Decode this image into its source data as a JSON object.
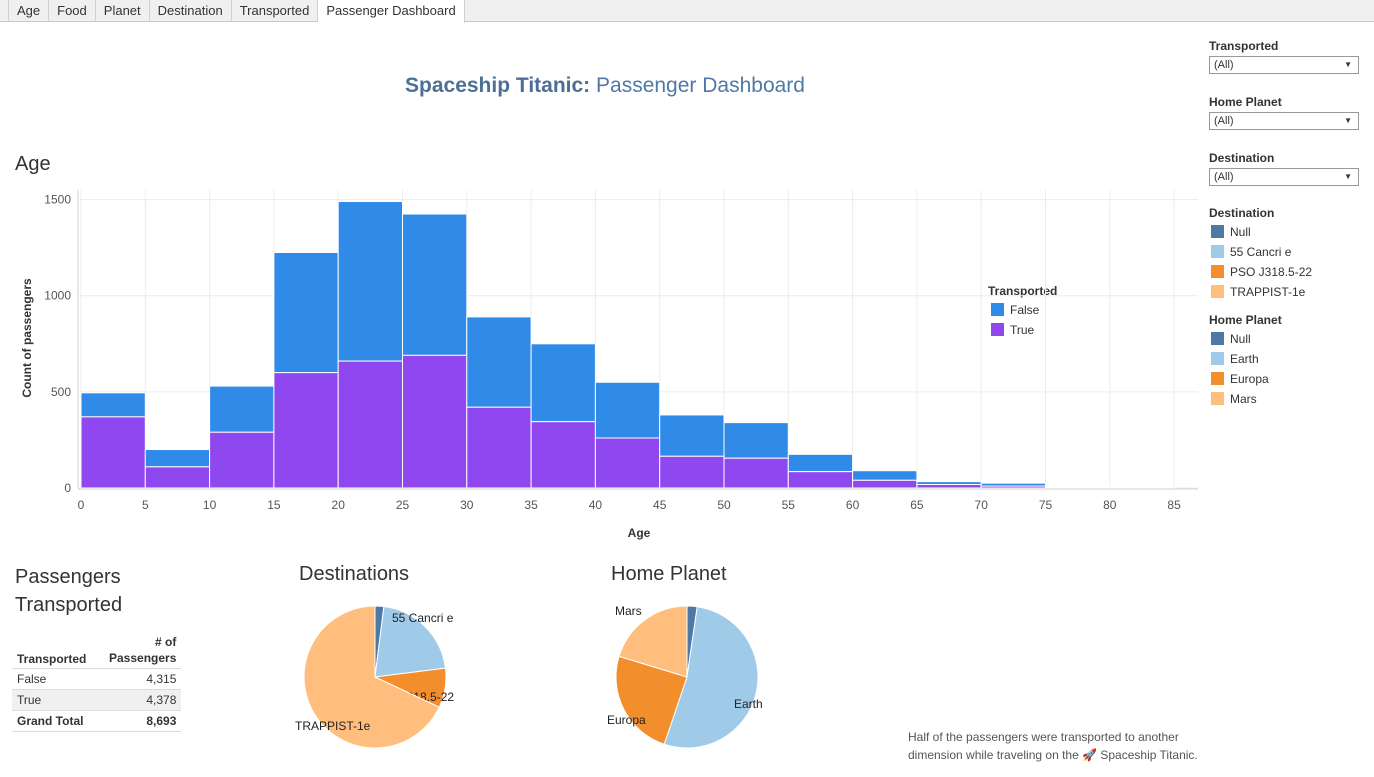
{
  "tabs": [
    "Age",
    "Food",
    "Planet",
    "Destination",
    "Transported",
    "Passenger Dashboard"
  ],
  "active_tab": "Passenger Dashboard",
  "title": {
    "bold": "Spaceship Titanic:",
    "rest": " Passenger Dashboard"
  },
  "filters": [
    {
      "label": "Transported",
      "value": "(All)"
    },
    {
      "label": "Home Planet",
      "value": "(All)"
    },
    {
      "label": "Destination",
      "value": "(All)"
    }
  ],
  "legends": {
    "destination": {
      "title": "Destination",
      "items": [
        {
          "label": "Null",
          "color": "#4e79a7"
        },
        {
          "label": "55 Cancri e",
          "color": "#a0cbe8"
        },
        {
          "label": "PSO J318.5-22",
          "color": "#f28e2b"
        },
        {
          "label": "TRAPPIST-1e",
          "color": "#ffbe7d"
        }
      ]
    },
    "home_planet": {
      "title": "Home Planet",
      "items": [
        {
          "label": "Null",
          "color": "#4e79a7"
        },
        {
          "label": "Earth",
          "color": "#a0cbe8"
        },
        {
          "label": "Europa",
          "color": "#f28e2b"
        },
        {
          "label": "Mars",
          "color": "#ffbe7d"
        }
      ]
    },
    "transported": {
      "title": "Transported",
      "items": [
        {
          "label": "False",
          "color": "#2f8ae8"
        },
        {
          "label": "True",
          "color": "#8f48ef"
        }
      ]
    }
  },
  "sections": {
    "age": "Age",
    "passengers": "Passengers Transported",
    "destinations": "Destinations",
    "home_planet": "Home Planet"
  },
  "table": {
    "headers": [
      "Transported",
      "# of Passengers"
    ],
    "rows": [
      {
        "label": "False",
        "value": "4,315"
      },
      {
        "label": "True",
        "value": "4,378"
      }
    ],
    "total": {
      "label": "Grand Total",
      "value": "8,693"
    }
  },
  "footnote": "Half of the passengers were transported to another dimension while traveling on the 🚀 Spaceship Titanic.",
  "chart_data": [
    {
      "type": "bar",
      "title": "Age",
      "xlabel": "Age",
      "ylabel": "Count of passengers",
      "bin_start": [
        0,
        5,
        10,
        15,
        20,
        25,
        30,
        35,
        40,
        45,
        50,
        55,
        60,
        65,
        70,
        75,
        80
      ],
      "bin_width": 5,
      "xticks": [
        0,
        5,
        10,
        15,
        20,
        25,
        30,
        35,
        40,
        45,
        50,
        55,
        60,
        65,
        70,
        75,
        80,
        85
      ],
      "yticks": [
        0,
        500,
        1000,
        1500
      ],
      "xlim": [
        0,
        87
      ],
      "ylim": [
        0,
        1550
      ],
      "stacked": true,
      "series": [
        {
          "name": "True",
          "values": [
            370,
            110,
            290,
            600,
            660,
            690,
            420,
            345,
            260,
            165,
            155,
            85,
            40,
            18,
            10,
            3,
            1
          ]
        },
        {
          "name": "False",
          "values": [
            125,
            90,
            240,
            625,
            830,
            735,
            470,
            405,
            290,
            215,
            185,
            90,
            50,
            15,
            15,
            4,
            1
          ]
        }
      ],
      "legend": "right"
    },
    {
      "type": "pie",
      "title": "Destinations",
      "slices": [
        {
          "label": "Null",
          "value": 2,
          "color": "#4e79a7",
          "show_label": false
        },
        {
          "label": "55 Cancri e",
          "value": 21,
          "color": "#a0cbe8",
          "show_label": true
        },
        {
          "label": "PSO J318.5-22",
          "value": 9,
          "color": "#f28e2b",
          "show_label": true
        },
        {
          "label": "TRAPPIST-1e",
          "value": 68,
          "color": "#ffbe7d",
          "show_label": true
        }
      ]
    },
    {
      "type": "pie",
      "title": "Home Planet",
      "slices": [
        {
          "label": "Null",
          "value": 2.3,
          "color": "#4e79a7",
          "show_label": false
        },
        {
          "label": "Earth",
          "value": 52.9,
          "color": "#a0cbe8",
          "show_label": true
        },
        {
          "label": "Europa",
          "value": 24.5,
          "color": "#f28e2b",
          "show_label": true
        },
        {
          "label": "Mars",
          "value": 20.3,
          "color": "#ffbe7d",
          "show_label": true
        }
      ]
    }
  ]
}
